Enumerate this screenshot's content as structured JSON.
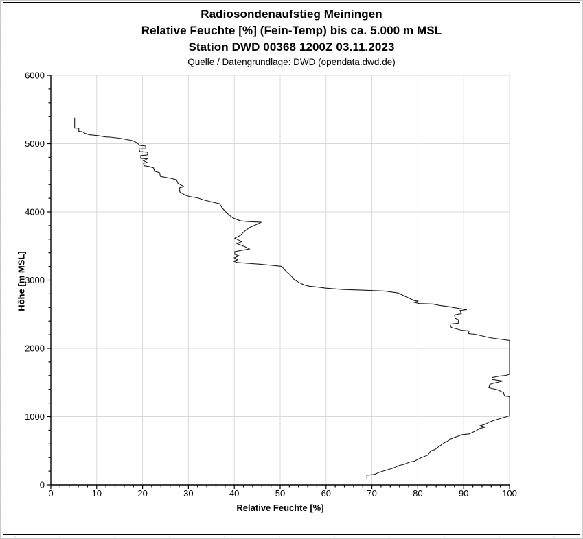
{
  "header": {
    "title_line1": "Radiosondenaufstieg Meiningen",
    "title_line2": "Relative Feuchte [%] (Fein-Temp) bis ca. 5.000 m MSL",
    "title_line3": "Station DWD 00368 1200Z 03.11.2023",
    "source_line": "Quelle / Datengrundlage: DWD (opendata.dwd.de)"
  },
  "chart_data": {
    "type": "line",
    "title": "Radiosondenaufstieg Meiningen",
    "subtitle": "Relative Feuchte [%] (Fein-Temp) bis ca. 5.000 m MSL",
    "station": "Station DWD 00368 1200Z 03.11.2023",
    "source": "Quelle / Datengrundlage: DWD (opendata.dwd.de)",
    "xlabel": "Relative Feuchte [%]",
    "ylabel": "Höhe [m MSL]",
    "xlim": [
      0,
      100
    ],
    "ylim": [
      0,
      6000
    ],
    "xticks": [
      0,
      10,
      20,
      30,
      40,
      50,
      60,
      70,
      80,
      90,
      100
    ],
    "yticks": [
      0,
      1000,
      2000,
      3000,
      4000,
      5000,
      6000
    ],
    "x_minor_step": 2,
    "y_minor_step": 200,
    "grid": true,
    "grid_color": "#d9d9d9",
    "axis_color": "#000000",
    "line_color": "#1a1a1a",
    "legend": "none",
    "series": [
      {
        "name": "Relative Feuchte",
        "points_rh_alt": [
          [
            5.2,
            5380
          ],
          [
            5.2,
            5230
          ],
          [
            6.1,
            5228
          ],
          [
            6.1,
            5180
          ],
          [
            6.9,
            5175
          ],
          [
            7.5,
            5150
          ],
          [
            8.4,
            5130
          ],
          [
            10.3,
            5118
          ],
          [
            11.8,
            5100
          ],
          [
            12.9,
            5095
          ],
          [
            14.2,
            5085
          ],
          [
            15.4,
            5075
          ],
          [
            16.5,
            5060
          ],
          [
            17.8,
            5045
          ],
          [
            18.6,
            5020
          ],
          [
            19.0,
            5000
          ],
          [
            19.4,
            4975
          ],
          [
            20.7,
            4965
          ],
          [
            20.7,
            4925
          ],
          [
            19.2,
            4922
          ],
          [
            19.4,
            4885
          ],
          [
            21.1,
            4875
          ],
          [
            21.1,
            4835
          ],
          [
            19.6,
            4825
          ],
          [
            19.6,
            4785
          ],
          [
            21.0,
            4778
          ],
          [
            20.2,
            4750
          ],
          [
            21.0,
            4725
          ],
          [
            20.2,
            4712
          ],
          [
            20.4,
            4675
          ],
          [
            21.4,
            4665
          ],
          [
            22.4,
            4645
          ],
          [
            22.6,
            4595
          ],
          [
            23.7,
            4575
          ],
          [
            23.9,
            4520
          ],
          [
            26.3,
            4490
          ],
          [
            27.4,
            4470
          ],
          [
            27.7,
            4420
          ],
          [
            29.0,
            4370
          ],
          [
            28.1,
            4355
          ],
          [
            28.1,
            4292
          ],
          [
            29.3,
            4245
          ],
          [
            30.2,
            4225
          ],
          [
            32.0,
            4205
          ],
          [
            33.5,
            4172
          ],
          [
            35.3,
            4142
          ],
          [
            36.8,
            4120
          ],
          [
            37.3,
            4062
          ],
          [
            38.0,
            4010
          ],
          [
            38.8,
            3958
          ],
          [
            39.8,
            3908
          ],
          [
            41.3,
            3870
          ],
          [
            42.8,
            3858
          ],
          [
            45.9,
            3848
          ],
          [
            43.3,
            3770
          ],
          [
            42.1,
            3710
          ],
          [
            41.3,
            3655
          ],
          [
            40.1,
            3615
          ],
          [
            41.6,
            3565
          ],
          [
            40.6,
            3535
          ],
          [
            42.4,
            3487
          ],
          [
            43.3,
            3457
          ],
          [
            40.1,
            3418
          ],
          [
            40.1,
            3378
          ],
          [
            41.0,
            3356
          ],
          [
            40.0,
            3326
          ],
          [
            40.7,
            3296
          ],
          [
            39.8,
            3278
          ],
          [
            40.6,
            3258
          ],
          [
            42.8,
            3246
          ],
          [
            45.8,
            3232
          ],
          [
            50.3,
            3202
          ],
          [
            51.0,
            3150
          ],
          [
            52.1,
            3082
          ],
          [
            52.5,
            3052
          ],
          [
            53.0,
            3012
          ],
          [
            53.7,
            2982
          ],
          [
            54.5,
            2952
          ],
          [
            55.2,
            2932
          ],
          [
            56.3,
            2912
          ],
          [
            57.8,
            2902
          ],
          [
            60.0,
            2882
          ],
          [
            63.8,
            2862
          ],
          [
            68.3,
            2852
          ],
          [
            72.8,
            2840
          ],
          [
            75.7,
            2812
          ],
          [
            77.0,
            2772
          ],
          [
            78.3,
            2732
          ],
          [
            79.2,
            2702
          ],
          [
            80.0,
            2692
          ],
          [
            79.3,
            2672
          ],
          [
            80.3,
            2656
          ],
          [
            83.2,
            2650
          ],
          [
            84.7,
            2630
          ],
          [
            87.0,
            2610
          ],
          [
            87.7,
            2600
          ],
          [
            90.7,
            2568
          ],
          [
            89.2,
            2556
          ],
          [
            89.5,
            2508
          ],
          [
            88.0,
            2488
          ],
          [
            88.2,
            2438
          ],
          [
            88.9,
            2418
          ],
          [
            88.8,
            2368
          ],
          [
            87.0,
            2356
          ],
          [
            87.3,
            2306
          ],
          [
            89.5,
            2266
          ],
          [
            91.2,
            2256
          ],
          [
            91.0,
            2216
          ],
          [
            92.5,
            2206
          ],
          [
            95.7,
            2156
          ],
          [
            100,
            2116
          ],
          [
            100,
            1620
          ],
          [
            99.2,
            1602
          ],
          [
            97.8,
            1592
          ],
          [
            96.2,
            1572
          ],
          [
            96.2,
            1546
          ],
          [
            98.5,
            1522
          ],
          [
            96.7,
            1492
          ],
          [
            95.7,
            1472
          ],
          [
            95.5,
            1422
          ],
          [
            97.5,
            1392
          ],
          [
            98.7,
            1352
          ],
          [
            98.9,
            1302
          ],
          [
            100,
            1292
          ],
          [
            100,
            1012
          ],
          [
            98.7,
            986
          ],
          [
            96.7,
            946
          ],
          [
            95.5,
            916
          ],
          [
            94.7,
            886
          ],
          [
            93.7,
            866
          ],
          [
            94.7,
            846
          ],
          [
            93.5,
            826
          ],
          [
            92.7,
            792
          ],
          [
            91.2,
            746
          ],
          [
            89.7,
            736
          ],
          [
            87.7,
            686
          ],
          [
            86.9,
            666
          ],
          [
            86.7,
            646
          ],
          [
            85.8,
            616
          ],
          [
            84.7,
            566
          ],
          [
            83.7,
            516
          ],
          [
            82.8,
            496
          ],
          [
            82.2,
            436
          ],
          [
            80.7,
            396
          ],
          [
            79.2,
            346
          ],
          [
            78.3,
            336
          ],
          [
            76.8,
            296
          ],
          [
            76.0,
            286
          ],
          [
            74.7,
            246
          ],
          [
            73.2,
            216
          ],
          [
            71.7,
            186
          ],
          [
            70.5,
            152
          ],
          [
            68.9,
            142
          ],
          [
            68.9,
            92
          ]
        ]
      }
    ]
  }
}
